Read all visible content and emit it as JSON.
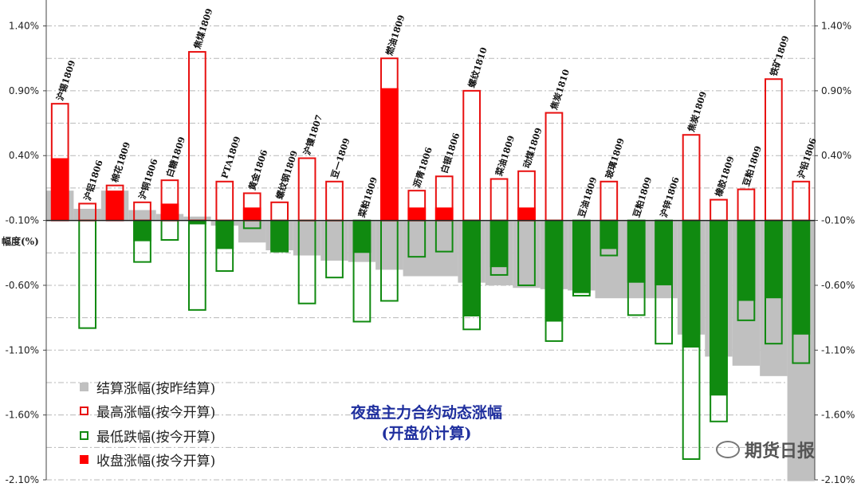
{
  "chart_data": {
    "type": "bar",
    "title": "夜盘主力合约动态涨幅",
    "subtitle": "(开盘价计算)",
    "ylabel": "幅度(%)",
    "ylim": [
      -2.1,
      1.6
    ],
    "yticks": [
      1.4,
      0.9,
      0.4,
      -0.1,
      -0.6,
      -1.1,
      -1.6,
      -2.1
    ],
    "ytick_labels": [
      "1.40%",
      "0.90%",
      "0.40%",
      "-0.10%",
      "-0.60%",
      "-1.10%",
      "-1.60%",
      "-2.10%"
    ],
    "baseline": -0.1,
    "legend_position": "bottom-left",
    "colors": {
      "settle": "#c0c0c0",
      "high": "#e81010",
      "low": "#108a10",
      "close": "#ff0000"
    },
    "categories": [
      "沪锡1809",
      "沪铝1806",
      "棉花1809",
      "沪铜1806",
      "白糖1809",
      "焦煤1809",
      "PTA1809",
      "黄金1806",
      "螺纹钢1809",
      "沪镍1807",
      "豆一1809",
      "菜粕1809",
      "燃油1809",
      "沥青1806",
      "白银1806",
      "螺纹1810",
      "菜油1809",
      "动煤1809",
      "焦炭1810",
      "豆油1809",
      "玻璃1809",
      "豆粕1809",
      "沪锌1806",
      "焦炭1809",
      "橡胶1809",
      "豆粕1809",
      "铁矿1809",
      "沪铅1806"
    ],
    "series": [
      {
        "name": "结算涨幅(按昨结算)",
        "values": [
          0.13,
          -0.01,
          0.13,
          -0.02,
          -0.05,
          -0.07,
          -0.14,
          -0.27,
          -0.33,
          -0.37,
          -0.41,
          -0.42,
          -0.48,
          -0.53,
          -0.53,
          -0.58,
          -0.6,
          -0.62,
          -0.63,
          -0.64,
          -0.7,
          -0.7,
          -0.7,
          -0.98,
          -1.15,
          -1.22,
          -1.3,
          -2.11
        ]
      },
      {
        "name": "最高涨幅(按今开算)",
        "values": [
          0.8,
          0.03,
          0.17,
          0.04,
          0.21,
          1.2,
          0.2,
          0.11,
          0.04,
          0.38,
          0.2,
          -0.1,
          1.15,
          0.13,
          0.24,
          0.9,
          0.22,
          0.28,
          0.73,
          -0.1,
          0.2,
          -0.1,
          -0.1,
          0.56,
          0.06,
          0.14,
          0.99,
          0.2
        ]
      },
      {
        "name": "最低跌幅(按今开算)",
        "values": [
          -0.1,
          -0.93,
          -0.1,
          -0.42,
          -0.25,
          -0.79,
          -0.49,
          -0.16,
          -0.34,
          -0.74,
          -0.54,
          -0.88,
          -0.72,
          -0.38,
          -0.34,
          -0.94,
          -0.52,
          -0.6,
          -1.03,
          -0.68,
          -0.37,
          -0.83,
          -1.05,
          -1.94,
          -1.65,
          -0.87,
          -1.05,
          -1.2
        ]
      },
      {
        "name": "收盘涨幅(按今开算)",
        "values": [
          0.38,
          -0.1,
          0.13,
          -0.26,
          0.03,
          -0.13,
          -0.32,
          0.0,
          -0.34,
          -0.1,
          -0.1,
          -0.35,
          0.92,
          0.0,
          0.0,
          -0.84,
          -0.46,
          0.0,
          -0.88,
          -0.66,
          -0.32,
          -0.58,
          -0.6,
          -1.08,
          -1.45,
          -0.72,
          -0.7,
          -0.98
        ]
      }
    ]
  },
  "watermark": "期货日报"
}
